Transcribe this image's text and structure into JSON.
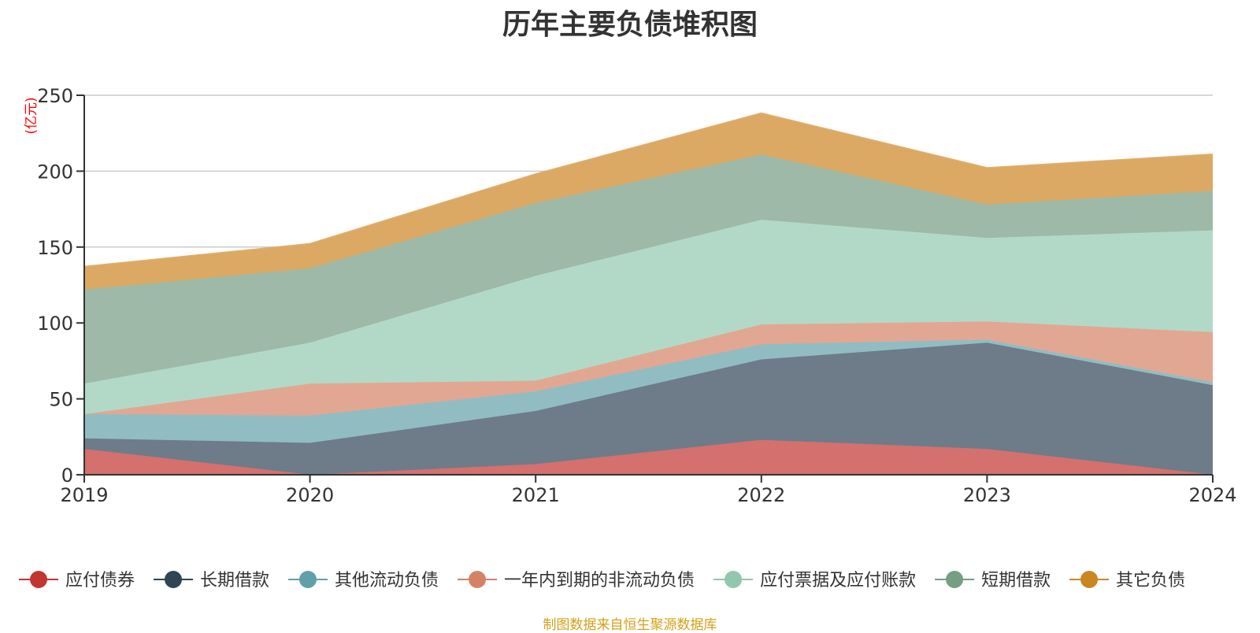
{
  "colors": {
    "source_note": "#d4a017",
    "unit_label": "#ff0000",
    "grid": "#cccccc",
    "axis": "#333333"
  },
  "source_note": "制图数据来自恒生聚源数据库",
  "chart_data": {
    "type": "area",
    "stacked": true,
    "title": "历年主要负债堆积图",
    "ylabel": "(亿元)",
    "xlabel": "",
    "x": [
      "2019",
      "2020",
      "2021",
      "2022",
      "2023",
      "2024"
    ],
    "ylim": [
      0,
      250
    ],
    "yticks": [
      0,
      50,
      100,
      150,
      200,
      250
    ],
    "grid": true,
    "legend_position": "bottom",
    "series": [
      {
        "name": "应付债券",
        "color": "#c23531",
        "fill": "#d4706e",
        "values": [
          17,
          0,
          7,
          23,
          17,
          0
        ]
      },
      {
        "name": "长期借款",
        "color": "#2f4554",
        "fill": "#6d7c88",
        "values": [
          7,
          21,
          35,
          53,
          70,
          59
        ]
      },
      {
        "name": "其他流动负债",
        "color": "#61a0a8",
        "fill": "#91bcc2",
        "values": [
          16,
          18,
          13,
          10,
          2,
          2
        ]
      },
      {
        "name": "一年内到期的非流动负债",
        "color": "#d48265",
        "fill": "#e1a793",
        "values": [
          0,
          21,
          7,
          13,
          12,
          33
        ]
      },
      {
        "name": "应付票据及应付账款",
        "color": "#91c7ae",
        "fill": "#b2d9c7",
        "values": [
          20,
          27,
          69,
          69,
          55,
          67
        ]
      },
      {
        "name": "短期借款",
        "color": "#749f83",
        "fill": "#9eb9a7",
        "values": [
          62,
          49,
          48,
          43,
          22,
          26
        ]
      },
      {
        "name": "其它负债",
        "color": "#ca8622",
        "fill": "#dba963",
        "values": [
          15,
          16,
          19,
          27,
          24,
          24
        ]
      }
    ]
  }
}
